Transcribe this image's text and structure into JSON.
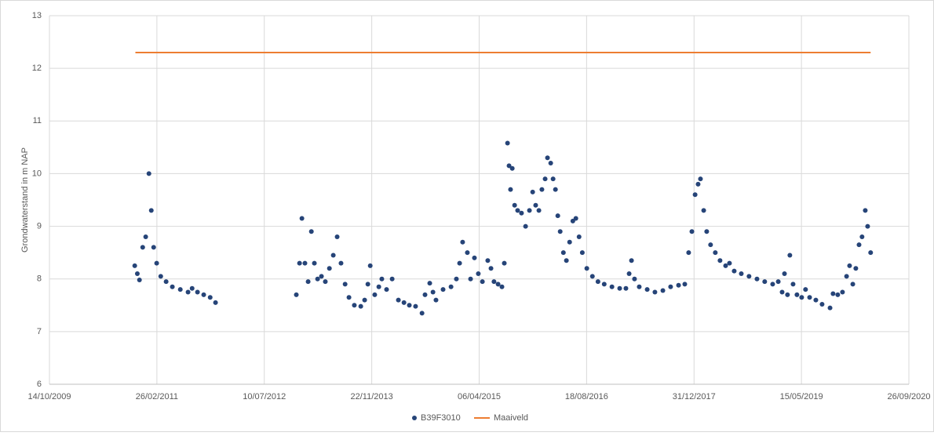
{
  "chart_data": {
    "type": "scatter",
    "ylabel": "Grondwaterstand in m NAP",
    "ylim": [
      6,
      13
    ],
    "yticks": [
      6,
      7,
      8,
      9,
      10,
      11,
      12,
      13
    ],
    "xlim": [
      "2009-10-14",
      "2020-09-26"
    ],
    "xticks": [
      {
        "value": "2009-10-14",
        "label": "14/10/2009"
      },
      {
        "value": "2011-02-26",
        "label": "26/02/2011"
      },
      {
        "value": "2012-07-10",
        "label": "10/07/2012"
      },
      {
        "value": "2013-11-22",
        "label": "22/11/2013"
      },
      {
        "value": "2015-04-06",
        "label": "06/04/2015"
      },
      {
        "value": "2016-08-18",
        "label": "18/08/2016"
      },
      {
        "value": "2017-12-31",
        "label": "31/12/2017"
      },
      {
        "value": "2019-05-15",
        "label": "15/05/2019"
      },
      {
        "value": "2020-09-26",
        "label": "26/09/2020"
      }
    ],
    "grid": true,
    "legend": "bottom",
    "series": [
      {
        "name": "B39F3010",
        "color": "#264478",
        "type": "scatter",
        "x": [
          "2010-11-15",
          "2010-11-27",
          "2010-12-07",
          "2010-12-22",
          "2011-01-05",
          "2011-01-20",
          "2011-01-31",
          "2011-02-11",
          "2011-02-25",
          "2011-03-16",
          "2011-04-10",
          "2011-05-09",
          "2011-06-15",
          "2011-07-21",
          "2011-08-09",
          "2011-09-03",
          "2011-10-02",
          "2011-11-01",
          "2011-11-26",
          "2012-12-06",
          "2012-12-21",
          "2013-01-01",
          "2013-01-15",
          "2013-01-30",
          "2013-02-14",
          "2013-02-28",
          "2013-03-15",
          "2013-04-02",
          "2013-04-20",
          "2013-05-09",
          "2013-05-27",
          "2013-06-14",
          "2013-07-02",
          "2013-07-21",
          "2013-08-08",
          "2013-09-02",
          "2013-10-02",
          "2013-10-20",
          "2013-11-04",
          "2013-11-15",
          "2013-12-06",
          "2013-12-25",
          "2014-01-08",
          "2014-01-30",
          "2014-02-25",
          "2014-03-26",
          "2014-04-21",
          "2014-05-16",
          "2014-06-14",
          "2014-07-14",
          "2014-07-28",
          "2014-08-19",
          "2014-09-03",
          "2014-09-17",
          "2014-10-20",
          "2014-11-26",
          "2014-12-21",
          "2015-01-05",
          "2015-01-19",
          "2015-02-10",
          "2015-02-25",
          "2015-03-15",
          "2015-04-02",
          "2015-04-21",
          "2015-05-16",
          "2015-05-31",
          "2015-06-14",
          "2015-07-03",
          "2015-07-21",
          "2015-08-01",
          "2015-08-16",
          "2015-08-23",
          "2015-08-30",
          "2015-09-07",
          "2015-09-18",
          "2015-10-02",
          "2015-10-20",
          "2015-11-08",
          "2015-11-26",
          "2015-12-11",
          "2015-12-25",
          "2016-01-09",
          "2016-01-23",
          "2016-02-07",
          "2016-02-18",
          "2016-03-04",
          "2016-03-15",
          "2016-03-26",
          "2016-04-06",
          "2016-04-17",
          "2016-05-02",
          "2016-05-16",
          "2016-05-31",
          "2016-06-15",
          "2016-06-29",
          "2016-07-14",
          "2016-07-29",
          "2016-08-19",
          "2016-09-14",
          "2016-10-10",
          "2016-11-08",
          "2016-12-14",
          "2017-01-19",
          "2017-02-17",
          "2017-03-04",
          "2017-03-15",
          "2017-03-29",
          "2017-04-20",
          "2017-05-27",
          "2017-07-02",
          "2017-08-08",
          "2017-09-13",
          "2017-10-20",
          "2017-11-18",
          "2017-12-06",
          "2017-12-21",
          "2018-01-05",
          "2018-01-19",
          "2018-01-30",
          "2018-02-14",
          "2018-02-28",
          "2018-03-18",
          "2018-04-09",
          "2018-05-01",
          "2018-05-27",
          "2018-06-14",
          "2018-07-06",
          "2018-08-08",
          "2018-09-13",
          "2018-10-20",
          "2018-11-25",
          "2019-01-01",
          "2019-01-27",
          "2019-02-14",
          "2019-02-25",
          "2019-03-11",
          "2019-03-22",
          "2019-04-06",
          "2019-04-24",
          "2019-05-16",
          "2019-06-03",
          "2019-06-22",
          "2019-07-21",
          "2019-08-19",
          "2019-09-25",
          "2019-10-09",
          "2019-10-31",
          "2019-11-22",
          "2019-12-11",
          "2019-12-25",
          "2020-01-09",
          "2020-01-23",
          "2020-02-07",
          "2020-02-21",
          "2020-03-07",
          "2020-03-18",
          "2020-04-01"
        ],
        "values": [
          8.25,
          8.1,
          7.98,
          8.6,
          8.8,
          10.0,
          9.3,
          8.6,
          8.3,
          8.05,
          7.95,
          7.85,
          7.8,
          7.75,
          7.82,
          7.75,
          7.7,
          7.65,
          7.55,
          7.7,
          8.3,
          9.15,
          8.3,
          7.95,
          8.9,
          8.3,
          8.0,
          8.05,
          7.95,
          8.2,
          8.45,
          8.8,
          8.3,
          7.9,
          7.65,
          7.5,
          7.48,
          7.6,
          7.9,
          8.25,
          7.7,
          7.85,
          8.0,
          7.8,
          8.0,
          7.6,
          7.55,
          7.5,
          7.48,
          7.35,
          7.7,
          7.92,
          7.75,
          7.6,
          7.8,
          7.85,
          8.0,
          8.3,
          8.7,
          8.5,
          8.0,
          8.4,
          8.1,
          7.95,
          8.35,
          8.2,
          7.95,
          7.9,
          7.85,
          8.3,
          10.58,
          10.15,
          9.7,
          10.1,
          9.4,
          9.3,
          9.25,
          9.0,
          9.3,
          9.65,
          9.4,
          9.3,
          9.7,
          9.9,
          10.3,
          10.2,
          9.9,
          9.7,
          9.2,
          8.9,
          8.5,
          8.35,
          8.7,
          9.1,
          9.15,
          8.8,
          8.5,
          8.2,
          8.05,
          7.95,
          7.9,
          7.85,
          7.82,
          7.82,
          8.1,
          8.35,
          8.0,
          7.85,
          7.8,
          7.75,
          7.78,
          7.85,
          7.88,
          7.9,
          8.5,
          8.9,
          9.6,
          9.8,
          9.9,
          9.3,
          8.9,
          8.65,
          8.5,
          8.35,
          8.25,
          8.3,
          8.15,
          8.1,
          8.05,
          8.0,
          7.95,
          7.9,
          7.95,
          7.75,
          8.1,
          7.7,
          8.45,
          7.9,
          7.7,
          7.65,
          7.8,
          7.65,
          7.6,
          7.52,
          7.45,
          7.72,
          7.7,
          7.75,
          8.05,
          8.25,
          7.9,
          8.2,
          8.65,
          8.8,
          9.3,
          9.0,
          8.5
        ]
      },
      {
        "name": "Maaiveld",
        "color": "#ed7d31",
        "type": "line",
        "x": [
          "2010-11-18",
          "2020-04-01"
        ],
        "values": [
          12.3,
          12.3
        ]
      }
    ]
  }
}
